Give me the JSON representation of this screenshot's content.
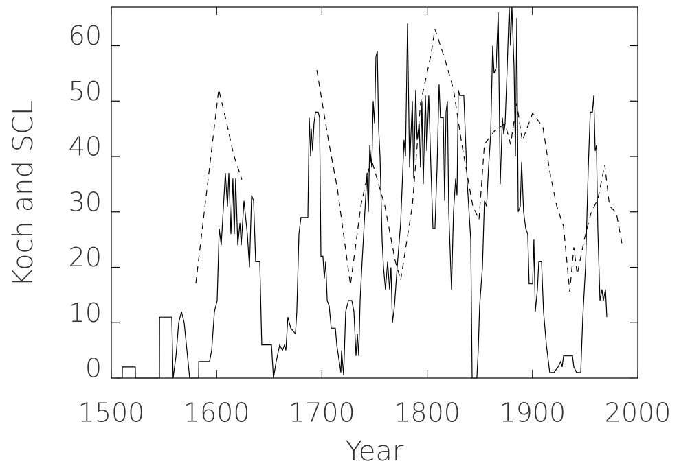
{
  "chart_data": {
    "type": "line",
    "xlabel": "Year",
    "ylabel": "Koch and SCL",
    "xlim": [
      1500,
      2000
    ],
    "ylim": [
      0,
      67
    ],
    "xticks": [
      1500,
      1600,
      1700,
      1800,
      1900,
      2000
    ],
    "yticks": [
      0,
      10,
      20,
      30,
      40,
      50,
      60
    ],
    "series": [
      {
        "color": "#000000",
        "style": "solid",
        "x": [
          1505.2,
          1510.4,
          1510.5,
          1522.8,
          1522.9,
          1545.7,
          1545.8,
          1557.4,
          1558.7,
          1561.4,
          1564.0,
          1566.6,
          1569.2,
          1571.8,
          1574.4,
          1582.9,
          1583.0,
          1593.3,
          1595.3,
          1597.9,
          1600.5,
          1602.5,
          1604.4,
          1608.3,
          1610.3,
          1611.6,
          1613.6,
          1615.5,
          1616.8,
          1618.1,
          1620.1,
          1622.1,
          1623.4,
          1626.0,
          1629.2,
          1631.2,
          1633.2,
          1635.1,
          1637.1,
          1641.0,
          1642.9,
          1652.1,
          1654.0,
          1656.6,
          1659.9,
          1662.5,
          1664.5,
          1665.8,
          1667.7,
          1670.4,
          1674.9,
          1676.2,
          1678.2,
          1680.1,
          1686.7,
          1688.0,
          1689.3,
          1689.9,
          1691.2,
          1692.5,
          1693.9,
          1696.5,
          1697.8,
          1699.1,
          1701.0,
          1702.3,
          1703.6,
          1705.0,
          1706.9,
          1708.9,
          1712.8,
          1714.1,
          1718.0,
          1718.7,
          1720.6,
          1722.6,
          1725.2,
          1728.4,
          1730.4,
          1732.4,
          1733.7,
          1735.0,
          1736.3,
          1738.2,
          1740.8,
          1742.8,
          1744.1,
          1745.4,
          1747.4,
          1748.7,
          1750.0,
          1751.3,
          1752.6,
          1753.9,
          1755.2,
          1757.2,
          1758.5,
          1760.4,
          1762.4,
          1764.3,
          1765.6,
          1767.0,
          1768.9,
          1771.5,
          1774.8,
          1778.0,
          1779.4,
          1781.3,
          1783.3,
          1785.9,
          1787.2,
          1789.1,
          1790.4,
          1792.4,
          1793.7,
          1795.0,
          1796.3,
          1798.3,
          1799.6,
          1801.5,
          1803.5,
          1805.5,
          1807.4,
          1809.4,
          1811.3,
          1812.6,
          1815.3,
          1816.6,
          1817.9,
          1819.2,
          1820.5,
          1823.1,
          1825.0,
          1827.0,
          1828.3,
          1829.6,
          1830.9,
          1834.8,
          1838.1,
          1841.4,
          1842.7,
          1847.2,
          1848.5,
          1849.8,
          1852.5,
          1854.4,
          1856.4,
          1858.3,
          1860.3,
          1862.2,
          1863.5,
          1865.5,
          1867.5,
          1869.4,
          1871.4,
          1872.7,
          1874.0,
          1876.0,
          1877.9,
          1879.2,
          1880.5,
          1882.5,
          1883.8,
          1885.1,
          1886.4,
          1888.4,
          1889.7,
          1891.6,
          1893.6,
          1895.5,
          1896.8,
          1900.1,
          1901.4,
          1902.7,
          1904.7,
          1906.0,
          1908.6,
          1910.5,
          1913.2,
          1916.4,
          1920.3,
          1924.3,
          1926.9,
          1928.2,
          1929.5,
          1938.0,
          1939.3,
          1941.9,
          1945.8,
          1947.8,
          1950.4,
          1953.0,
          1954.9,
          1956.9,
          1958.2,
          1959.5,
          1960.8,
          1962.1,
          1964.1,
          1966.0,
          1967.3,
          1969.3,
          1970.6
        ],
        "values": [
          0,
          0,
          2,
          2,
          0,
          0,
          11,
          11,
          0,
          4,
          10,
          12,
          10,
          5,
          0,
          0,
          3,
          3,
          5,
          12,
          14,
          27,
          24,
          37,
          31,
          37,
          26,
          36,
          26,
          36,
          24,
          28,
          24,
          32,
          26,
          20,
          33,
          32,
          21,
          21,
          6,
          6,
          0,
          3,
          6,
          5,
          6,
          5,
          11,
          9,
          8,
          12,
          26,
          29,
          29,
          47,
          40,
          45,
          41,
          46,
          48,
          48,
          47,
          22,
          22,
          18,
          21,
          14,
          13,
          9,
          9,
          6,
          1,
          5,
          0.5,
          12,
          14,
          14,
          12,
          4,
          8,
          4,
          14,
          21,
          30,
          37,
          30,
          42,
          38,
          50,
          46,
          58,
          59,
          45,
          40,
          25,
          20,
          16,
          21,
          16,
          20,
          10,
          13,
          20,
          28,
          43,
          40,
          64,
          38,
          50,
          36,
          52,
          43,
          46,
          38,
          50,
          35,
          51,
          41,
          51,
          38,
          27,
          27,
          38,
          53,
          47,
          47,
          32,
          48,
          50,
          30,
          16,
          30,
          36,
          33,
          52,
          51,
          51,
          35,
          25,
          0,
          0,
          5,
          13,
          20,
          32,
          31,
          38,
          44,
          60,
          55,
          56,
          66,
          35,
          47,
          44,
          46,
          56,
          67,
          60,
          67,
          56,
          40,
          65,
          30,
          31,
          39,
          30,
          27,
          26,
          17,
          17,
          25,
          12,
          16,
          21,
          21,
          12,
          6,
          1,
          1,
          2,
          3,
          2,
          4,
          4,
          2,
          1,
          1,
          11,
          20,
          38,
          48,
          48,
          51,
          41,
          42,
          27,
          14,
          16,
          14,
          16,
          11
        ]
      },
      {
        "color": "#000000",
        "style": "dashed",
        "x": [
          1580.3,
          1602.0,
          1609.7,
          1616.2,
          1624.0,
          1660,
          1695.2,
          1706.3,
          1714.7,
          1727.1,
          1737.0,
          1746.7,
          1759.8,
          1769.6,
          1774.8,
          1785.9,
          1793.7,
          1803.5,
          1807.4,
          1816.6,
          1825.0,
          1832.9,
          1838.1,
          1843.3,
          1849.2,
          1854.4,
          1864.2,
          1874.0,
          1879.2,
          1885.1,
          1890.3,
          1900.1,
          1909.9,
          1916.4,
          1923.0,
          1929.5,
          1935.4,
          1939.3,
          1942.5,
          1949.1,
          1955.6,
          1962.1,
          1968.6,
          1973.2,
          1979.7,
          1985.0
        ],
        "values": [
          17.1,
          52.1,
          45.9,
          40.3,
          35.8,
          null,
          55.6,
          42.8,
          34.2,
          16.8,
          31.1,
          39.7,
          31.1,
          21.2,
          17.7,
          31.1,
          49.6,
          58.3,
          63,
          57.7,
          52.1,
          42.2,
          36.6,
          31.1,
          28.6,
          42.2,
          44.7,
          45.9,
          42.2,
          49.6,
          42.8,
          47.8,
          45.3,
          37.3,
          31.1,
          27.4,
          15.6,
          23.6,
          18.7,
          24.9,
          29.8,
          32.3,
          38.5,
          31.1,
          29.8,
          24.3
        ]
      }
    ]
  }
}
